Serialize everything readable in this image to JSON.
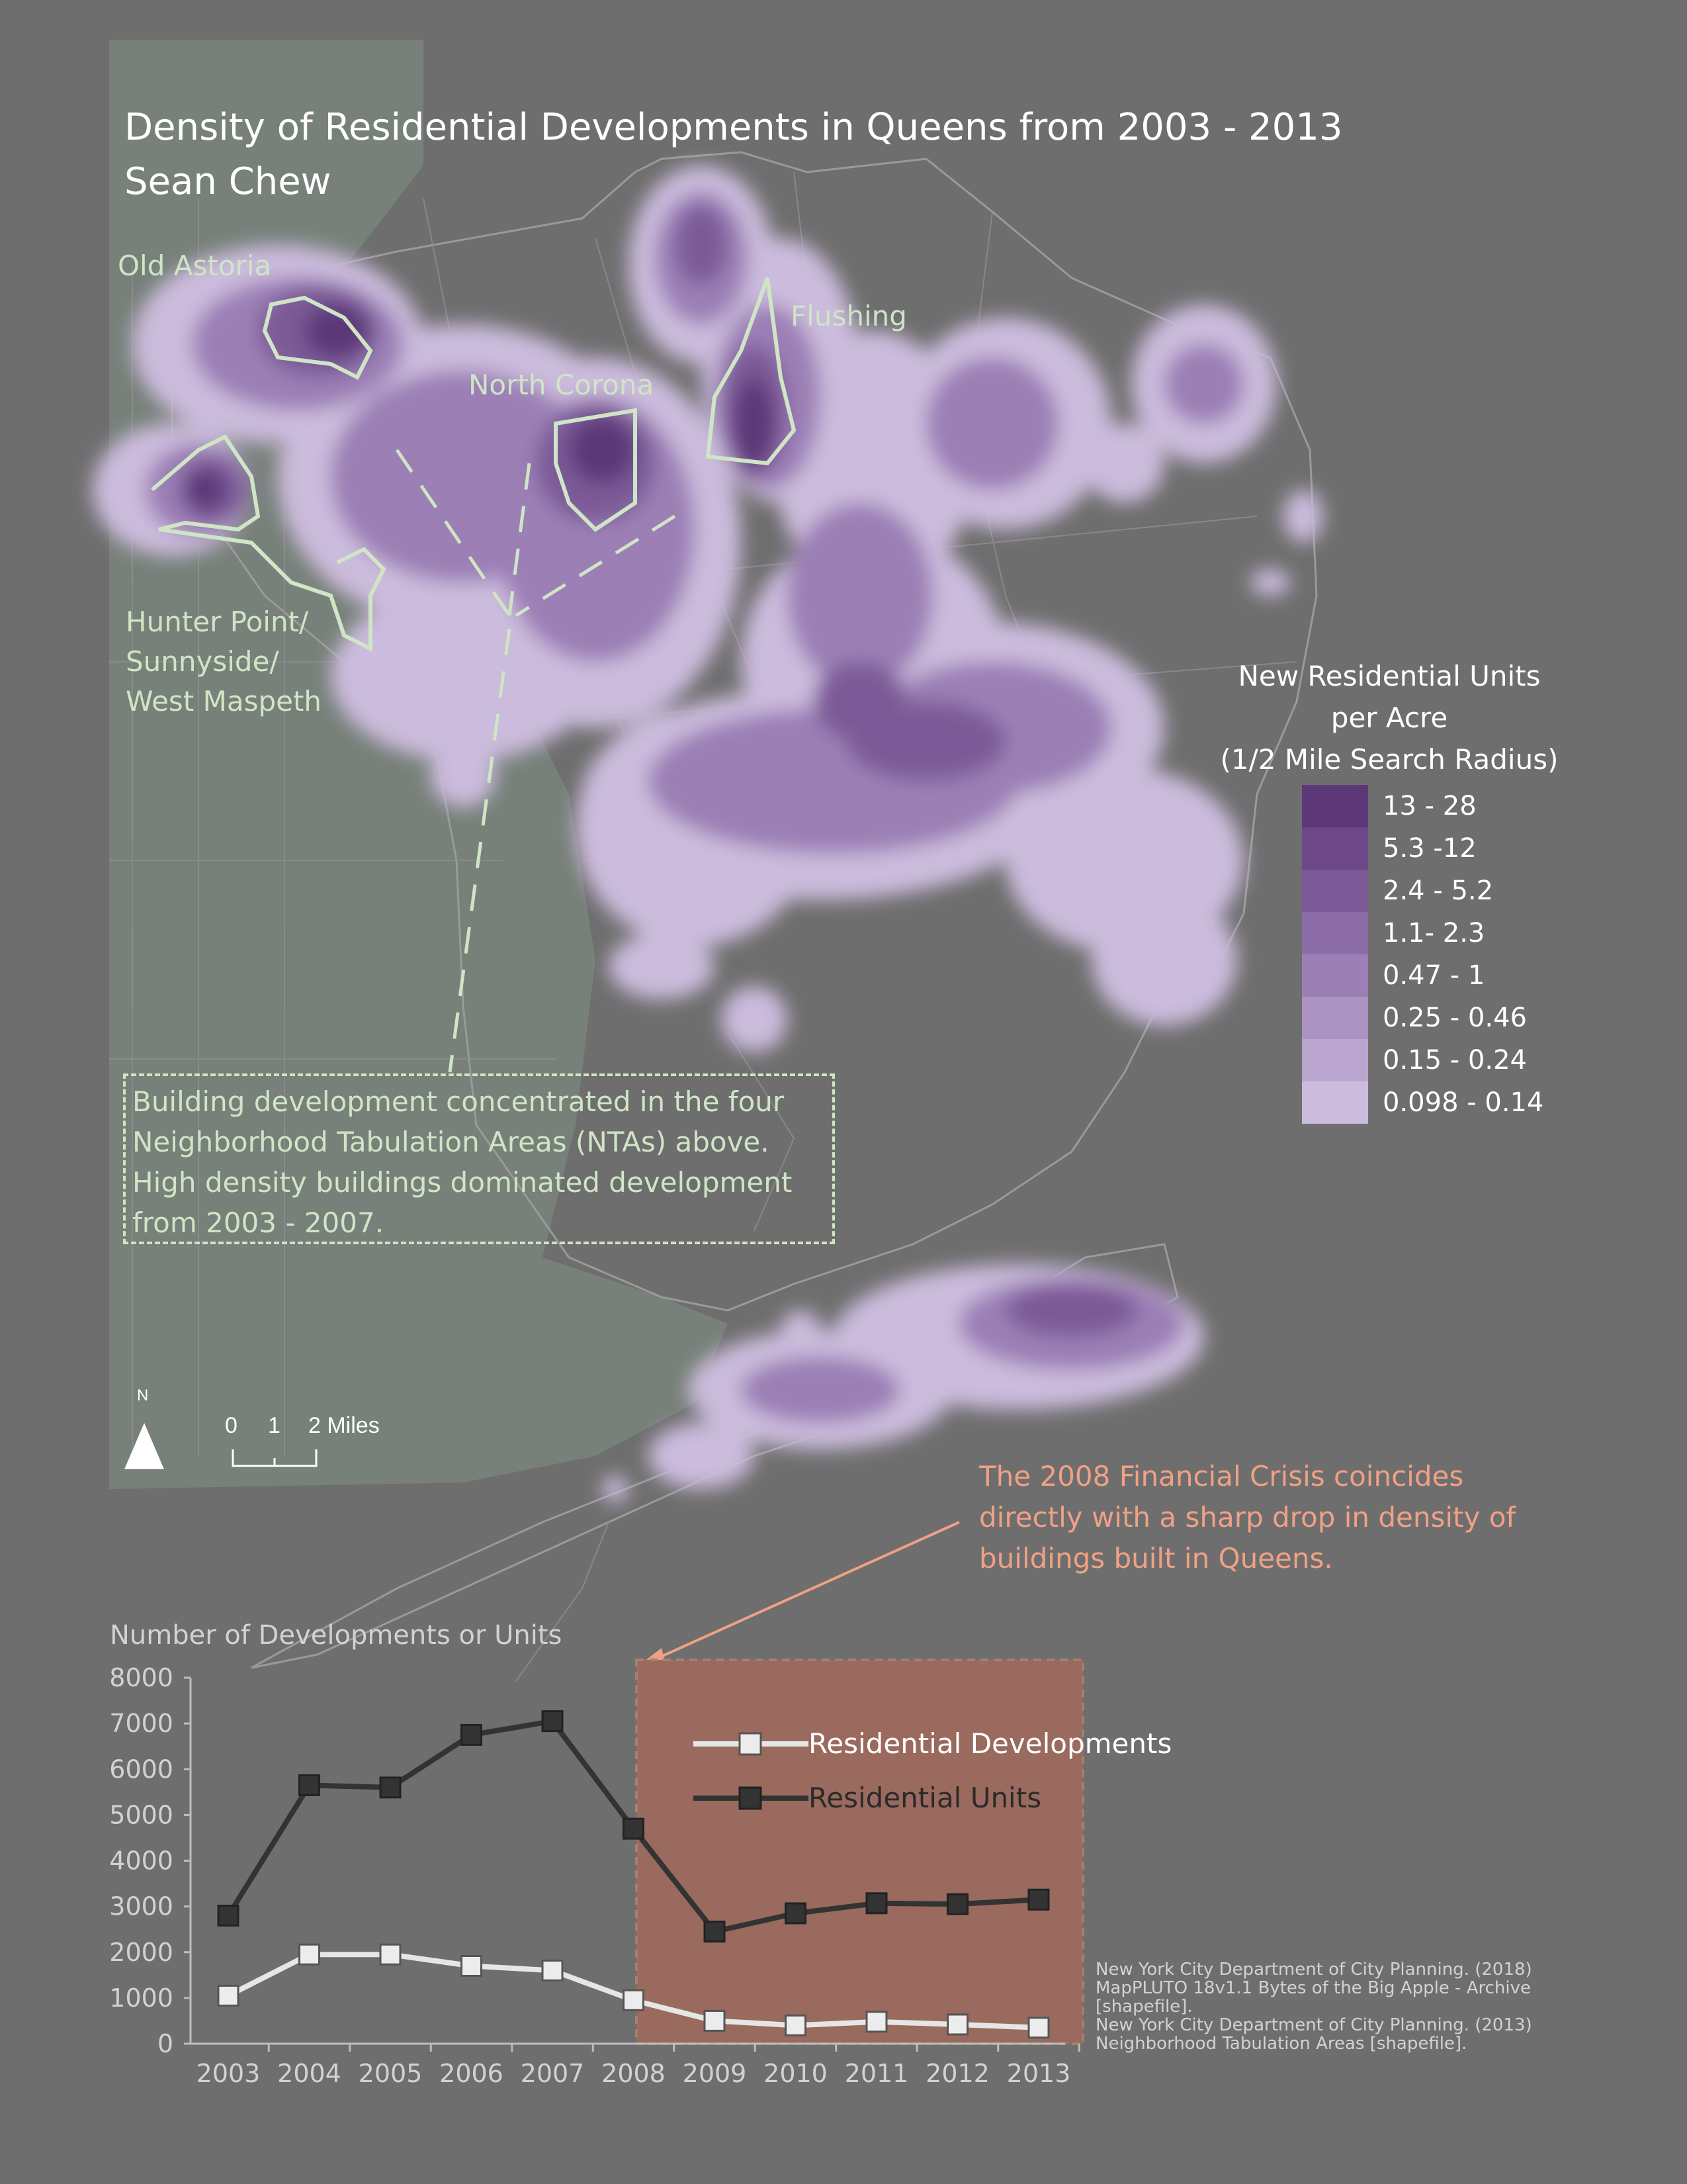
{
  "title": {
    "main": "Density of Residential Developments in Queens from 2003 - 2013",
    "author": "Sean Chew"
  },
  "map_labels": {
    "old_astoria": "Old Astoria",
    "flushing": "Flushing",
    "north_corona": "North Corona",
    "hunter_point_1": "Hunter Point/",
    "hunter_point_2": "Sunnyside/",
    "hunter_point_3": "West Maspeth"
  },
  "callout": {
    "line1": "Building development concentrated in the four",
    "line2": "Neighborhood Tabulation Areas (NTAs) above.",
    "line3": "High density buildings dominated development",
    "line4": "from 2003 - 2007."
  },
  "legend": {
    "title1": "New Residential Units",
    "title2": "per Acre",
    "title3": "(1/2 Mile Search Radius)",
    "classes": [
      {
        "label": "13 - 28",
        "color": "#5c3878"
      },
      {
        "label": "5.3 -12",
        "color": "#6c4888"
      },
      {
        "label": "2.4 - 5.2",
        "color": "#7c5a97"
      },
      {
        "label": "1.1- 2.3",
        "color": "#8c6ca6"
      },
      {
        "label": "0.47 - 1",
        "color": "#9b7fb5"
      },
      {
        "label": "0.25 - 0.46",
        "color": "#ab93c3"
      },
      {
        "label": "0.15 - 0.24",
        "color": "#bba6d0"
      },
      {
        "label": "0.098 - 0.14",
        "color": "#cbbbdc"
      }
    ]
  },
  "scale_bar": {
    "zero": "0",
    "one": "1",
    "two": "2 Miles",
    "north": "N"
  },
  "crisis_note": {
    "line1": "The 2008 Financial Crisis coincides",
    "line2": "directly with a sharp drop in density of",
    "line3": "buildings built in Queens."
  },
  "sources": {
    "line1": "New York City Department of City Planning. (2018)",
    "line2": "MapPLUTO 18v1.1 Bytes of the Big Apple - Archive",
    "line3": "[shapefile].",
    "line4": "New York City Department of City Planning. (2013)",
    "line5": "Neighborhood Tabulation Areas [shapefile]."
  },
  "colors": {
    "background": "#6e6e6e",
    "land_left": "#778079",
    "nta_outline": "#cfe5c6",
    "crisis_fill": "#9a6a5e",
    "crisis_text": "#f0a184"
  },
  "chart_data": {
    "type": "line",
    "ylabel": "Number of Developments or Units",
    "xlabel": "",
    "x": [
      "2003",
      "2004",
      "2005",
      "2006",
      "2007",
      "2008",
      "2009",
      "2010",
      "2011",
      "2012",
      "2013"
    ],
    "ylim": [
      0,
      8000
    ],
    "yticks": [
      "0",
      "1000",
      "2000",
      "3000",
      "4000",
      "5000",
      "6000",
      "7000",
      "8000"
    ],
    "series": [
      {
        "name": "Residential Developments",
        "values": [
          1050,
          1950,
          1950,
          1700,
          1600,
          950,
          500,
          400,
          480,
          420,
          350
        ],
        "color": "#e6e6e6"
      },
      {
        "name": "Residential Units",
        "values": [
          2800,
          5650,
          5600,
          6750,
          7050,
          4700,
          2450,
          2850,
          3070,
          3050,
          3150
        ],
        "color": "#333333"
      }
    ],
    "highlight_range": [
      "2008",
      "2013"
    ],
    "legend_position": "top-right"
  }
}
